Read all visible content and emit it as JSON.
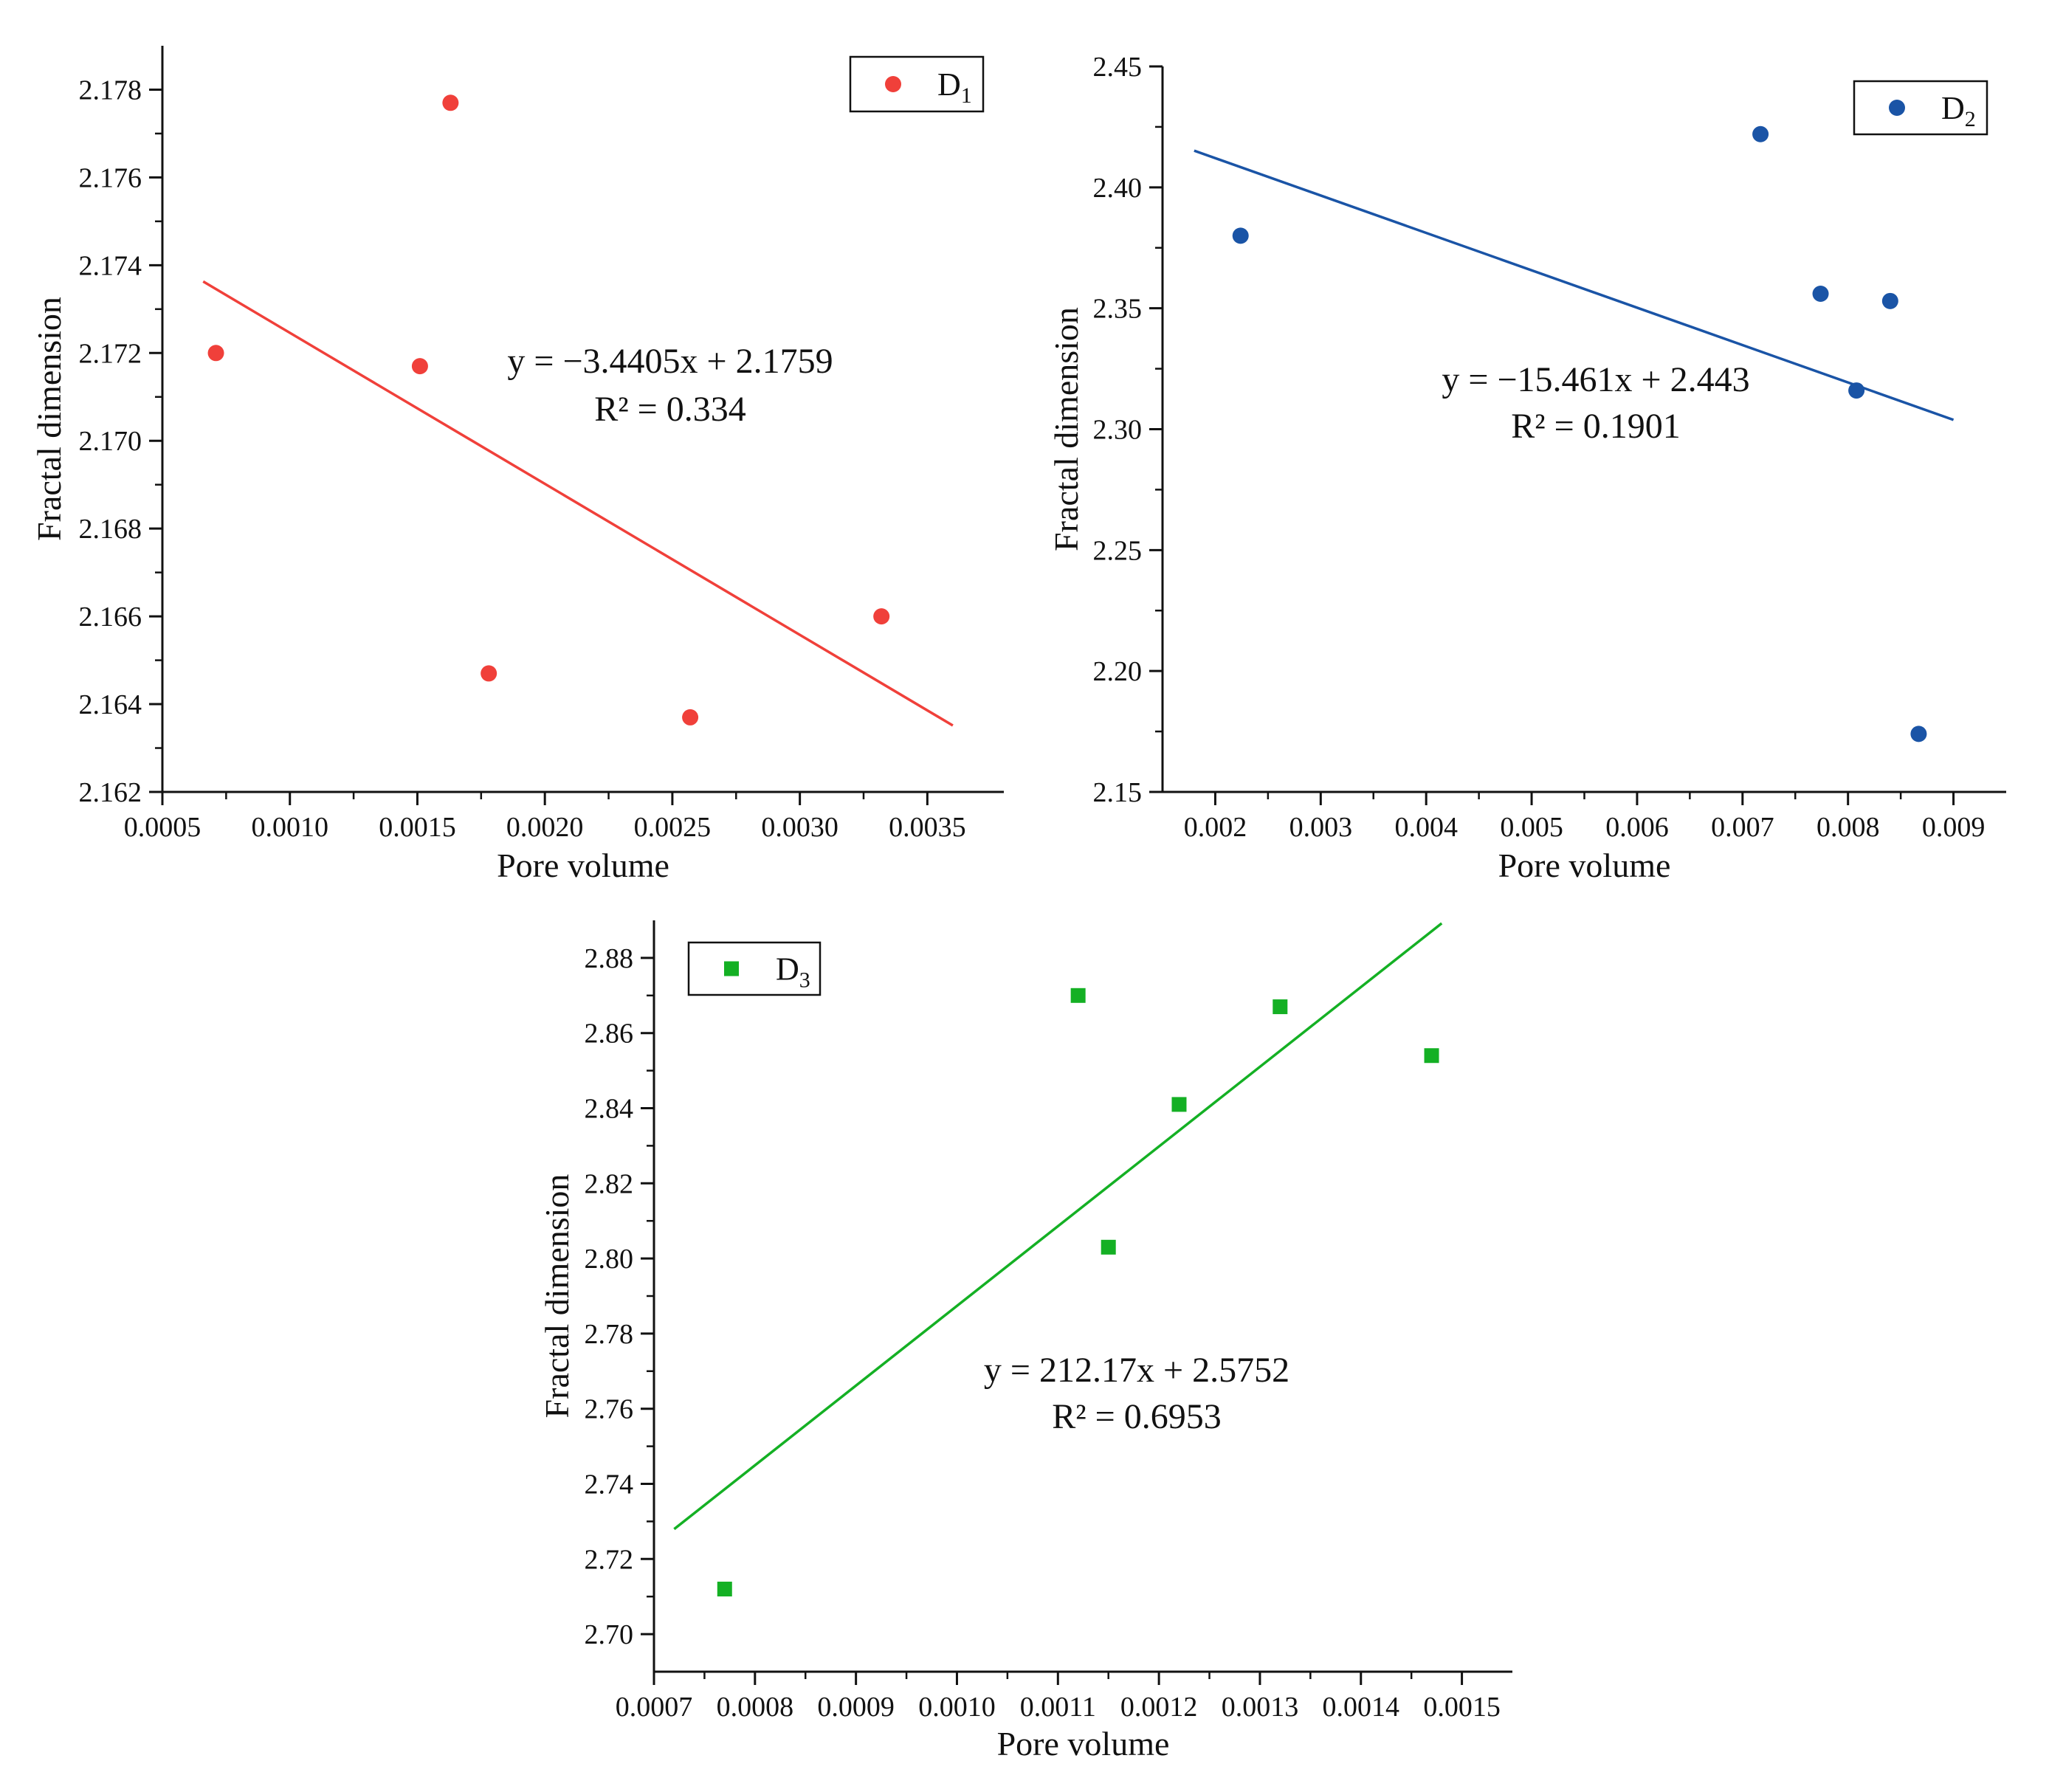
{
  "chart_data": [
    {
      "type": "scatter",
      "id": "d1",
      "series_name": "D",
      "series_subscript": "1",
      "marker": "circle",
      "color": "#f0403a",
      "xlabel": "Pore volume",
      "ylabel": "Fractal dimension",
      "xlim": [
        0.0005,
        0.0038
      ],
      "ylim": [
        2.162,
        2.179
      ],
      "xticks": [
        0.0005,
        0.001,
        0.0015,
        0.002,
        0.0025,
        0.003,
        0.0035
      ],
      "xtick_labels": [
        "0.0005",
        "0.0010",
        "0.0015",
        "0.0020",
        "0.0025",
        "0.0030",
        "0.0035"
      ],
      "yticks": [
        2.162,
        2.164,
        2.166,
        2.168,
        2.17,
        2.172,
        2.174,
        2.176,
        2.178
      ],
      "ytick_labels": [
        "2.162",
        "2.164",
        "2.166",
        "2.168",
        "2.170",
        "2.172",
        "2.174",
        "2.176",
        "2.178"
      ],
      "points": [
        {
          "x": 0.00071,
          "y": 2.172
        },
        {
          "x": 0.00151,
          "y": 2.1717
        },
        {
          "x": 0.00163,
          "y": 2.1777
        },
        {
          "x": 0.00178,
          "y": 2.1647
        },
        {
          "x": 0.00257,
          "y": 2.1637
        },
        {
          "x": 0.00332,
          "y": 2.166
        }
      ],
      "fit": {
        "slope": -3.4405,
        "intercept": 2.1759,
        "x_range": [
          0.00066,
          0.0036
        ]
      },
      "equation_text": "y = −3.4405x + 2.1759",
      "r2_text": "R² = 0.334",
      "legend_position": "top-right"
    },
    {
      "type": "scatter",
      "id": "d2",
      "series_name": "D",
      "series_subscript": "2",
      "marker": "circle",
      "color": "#1a54a6",
      "xlabel": "Pore volume",
      "ylabel": "Fractal dimension",
      "xlim": [
        0.0015,
        0.0095
      ],
      "ylim": [
        2.15,
        2.45
      ],
      "xticks": [
        0.002,
        0.003,
        0.004,
        0.005,
        0.006,
        0.007,
        0.008,
        0.009
      ],
      "xtick_labels": [
        "0.002",
        "0.003",
        "0.004",
        "0.005",
        "0.006",
        "0.007",
        "0.008",
        "0.009"
      ],
      "yticks": [
        2.15,
        2.2,
        2.25,
        2.3,
        2.35,
        2.4,
        2.45
      ],
      "ytick_labels": [
        "2.15",
        "2.20",
        "2.25",
        "2.30",
        "2.35",
        "2.40",
        "2.45"
      ],
      "points": [
        {
          "x": 0.00224,
          "y": 2.38
        },
        {
          "x": 0.00717,
          "y": 2.422
        },
        {
          "x": 0.00774,
          "y": 2.356
        },
        {
          "x": 0.00808,
          "y": 2.316
        },
        {
          "x": 0.0084,
          "y": 2.353
        },
        {
          "x": 0.00867,
          "y": 2.174
        }
      ],
      "fit": {
        "slope": -15.461,
        "intercept": 2.443,
        "x_range": [
          0.0018,
          0.009
        ]
      },
      "equation_text": "y = −15.461x + 2.443",
      "r2_text": "R² = 0.1901",
      "legend_position": "top-right"
    },
    {
      "type": "scatter",
      "id": "d3",
      "series_name": "D",
      "series_subscript": "3",
      "marker": "square",
      "color": "#14b024",
      "xlabel": "Pore volume",
      "ylabel": "Fractal dimension",
      "xlim": [
        0.0007,
        0.00155
      ],
      "ylim": [
        2.69,
        2.89
      ],
      "xticks": [
        0.0007,
        0.0008,
        0.0009,
        0.001,
        0.0011,
        0.0012,
        0.0013,
        0.0014,
        0.0015
      ],
      "xtick_labels": [
        "0.0007",
        "0.0008",
        "0.0009",
        "0.0010",
        "0.0011",
        "0.0012",
        "0.0013",
        "0.0014",
        "0.0015"
      ],
      "yticks": [
        2.7,
        2.72,
        2.74,
        2.76,
        2.78,
        2.8,
        2.82,
        2.84,
        2.86,
        2.88
      ],
      "ytick_labels": [
        "2.70",
        "2.72",
        "2.74",
        "2.76",
        "2.78",
        "2.80",
        "2.82",
        "2.84",
        "2.86",
        "2.88"
      ],
      "points": [
        {
          "x": 0.00077,
          "y": 2.712
        },
        {
          "x": 0.00112,
          "y": 2.87
        },
        {
          "x": 0.00115,
          "y": 2.803
        },
        {
          "x": 0.00122,
          "y": 2.841
        },
        {
          "x": 0.00132,
          "y": 2.867
        },
        {
          "x": 0.00147,
          "y": 2.854
        }
      ],
      "fit": {
        "slope": 212.17,
        "intercept": 2.5752,
        "x_range": [
          0.00072,
          0.00148
        ]
      },
      "equation_text": "y = 212.17x + 2.5752",
      "r2_text": "R² = 0.6953",
      "legend_position": "top-left"
    }
  ]
}
